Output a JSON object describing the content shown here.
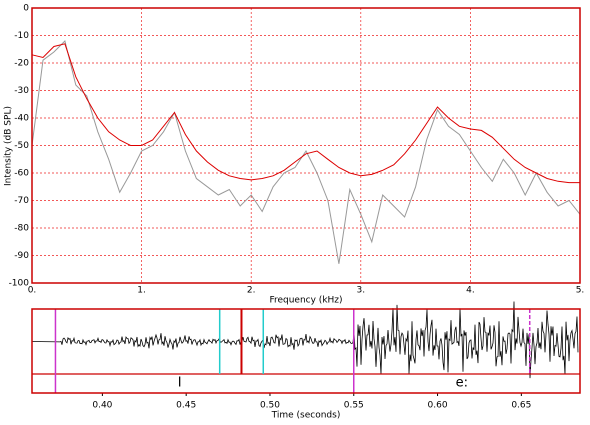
{
  "chart_data": [
    {
      "type": "line",
      "x_label": "Frequency (kHz)",
      "y_label": "Intensity (dB SPL)",
      "x": [
        0,
        0.1,
        0.2,
        0.3,
        0.4,
        0.5,
        0.6,
        0.7,
        0.8,
        0.9,
        1,
        1.1,
        1.2,
        1.3,
        1.4,
        1.5,
        1.6,
        1.7,
        1.8,
        1.9,
        2,
        2.1,
        2.2,
        2.3,
        2.4,
        2.5,
        2.6,
        2.7,
        2.8,
        2.9,
        3,
        3.1,
        3.2,
        3.3,
        3.4,
        3.5,
        3.6,
        3.7,
        3.8,
        3.9,
        4,
        4.1,
        4.2,
        4.3,
        4.4,
        4.5,
        4.6,
        4.7,
        4.8,
        4.9,
        5
      ],
      "series": [
        {
          "color": "#999999",
          "values": [
            -50,
            -19,
            -16,
            -12,
            -28,
            -32,
            -45,
            -55,
            -67,
            -60,
            -52,
            -50,
            -45,
            -38,
            -52,
            -62,
            -65,
            -68,
            -66,
            -72,
            -68,
            -74,
            -65,
            -60,
            -58,
            -52,
            -60,
            -70,
            -93,
            -66,
            -75,
            -85,
            -68,
            -72,
            -76,
            -65,
            -48,
            -37,
            -43,
            -46,
            -52,
            -58,
            -63,
            -55,
            -60,
            -68,
            -60,
            -67,
            -72,
            -70,
            -75
          ]
        },
        {
          "color": "#dd0000",
          "values": [
            -17,
            -18,
            -14,
            -13,
            -25,
            -33,
            -40,
            -45,
            -48,
            -50,
            -50,
            -48,
            -43,
            -38,
            -46,
            -52,
            -56,
            -59,
            -61,
            -62,
            -62.5,
            -62,
            -61,
            -59,
            -56,
            -53,
            -52,
            -55,
            -58,
            -60,
            -61,
            -60.5,
            -59,
            -57,
            -53,
            -48,
            -42,
            -36,
            -40,
            -43,
            -44,
            -44.5,
            -47,
            -51,
            -55,
            -58,
            -60,
            -62,
            -63,
            -63.5,
            -63.5
          ]
        }
      ],
      "xlim": [
        0,
        5
      ],
      "xticks": [
        {
          "value": 0,
          "label": "0."
        },
        {
          "value": 1,
          "label": "1."
        },
        {
          "value": 2,
          "label": "2."
        },
        {
          "value": 3,
          "label": "3."
        },
        {
          "value": 4,
          "label": "4."
        },
        {
          "value": 5,
          "label": "5."
        }
      ],
      "ylim": [
        -100,
        0
      ],
      "yticks": [
        0,
        -10,
        -20,
        -30,
        -40,
        -50,
        -60,
        -70,
        -80,
        -90,
        -100
      ],
      "grid": true,
      "grid_color": "#ee2222",
      "frame_color": "#cc0000"
    },
    {
      "type": "waveform",
      "x_label": "Time (seconds)",
      "xlim": [
        0.358,
        0.685
      ],
      "xticks": [
        {
          "value": 0.4,
          "label": "0.40"
        },
        0.45,
        {
          "value": 0.5,
          "label": "0.50"
        },
        0.55,
        {
          "value": 0.6,
          "label": "0.60"
        },
        0.65
      ],
      "markers": [
        {
          "time": 0.372,
          "color": "#cc33cc"
        },
        {
          "time": 0.47,
          "color": "#22cccc"
        },
        {
          "time": 0.483,
          "color": "#cc0000"
        },
        {
          "time": 0.496,
          "color": "#22cccc"
        },
        {
          "time": 0.55,
          "color": "#cc33cc"
        },
        {
          "time": 0.655,
          "color": "#cc33cc",
          "dashed": true
        }
      ],
      "segments": [
        {
          "label": "I",
          "start": 0.372,
          "end": 0.55
        },
        {
          "label": "e:",
          "start": 0.55,
          "end": 0.685
        }
      ],
      "frame_color": "#cc0000"
    }
  ]
}
